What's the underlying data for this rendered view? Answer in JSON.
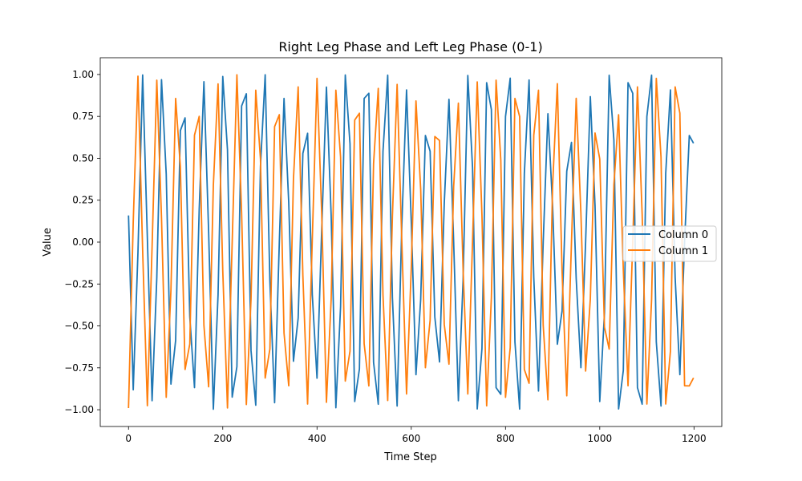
{
  "chart_data": {
    "type": "line",
    "title": "Right Leg Phase and Left Leg Phase (0-1)",
    "xlabel": "Time Step",
    "ylabel": "Value",
    "xlim": [
      -60,
      1259
    ],
    "ylim": [
      -1.1,
      1.1
    ],
    "xticks": [
      0,
      200,
      400,
      600,
      800,
      1000,
      1200
    ],
    "yticks": [
      -1.0,
      -0.75,
      -0.5,
      -0.25,
      0.0,
      0.25,
      0.5,
      0.75,
      1.0
    ],
    "xtick_labels": [
      "0",
      "200",
      "400",
      "600",
      "800",
      "1000",
      "1200"
    ],
    "ytick_labels": [
      "−1.00",
      "−0.75",
      "−0.50",
      "−0.25",
      "0.00",
      "0.25",
      "0.50",
      "0.75",
      "1.00"
    ],
    "grid": false,
    "legend_position": "center-right",
    "series": [
      {
        "name": "Column 0",
        "color": "#1f77b4",
        "x": [
          0,
          10,
          20,
          30,
          40,
          50,
          60,
          70,
          80,
          90,
          100,
          110,
          120,
          130,
          140,
          150,
          160,
          170,
          180,
          190,
          200,
          210,
          220,
          230,
          240,
          250,
          260,
          270,
          280,
          290,
          300,
          310,
          320,
          330,
          340,
          350,
          360,
          370,
          380,
          390,
          400,
          410,
          420,
          430,
          440,
          450,
          460,
          470,
          480,
          490,
          500,
          510,
          520,
          530,
          540,
          550,
          560,
          570,
          580,
          590,
          600,
          610,
          620,
          630,
          640,
          650,
          660,
          670,
          680,
          690,
          700,
          710,
          720,
          730,
          740,
          750,
          760,
          770,
          780,
          790,
          800,
          810,
          820,
          830,
          840,
          850,
          860,
          870,
          880,
          890,
          900,
          910,
          920,
          930,
          940,
          950,
          960,
          970,
          980,
          990,
          1000,
          1010,
          1020,
          1030,
          1040,
          1050,
          1060,
          1070,
          1080,
          1090,
          1100,
          1110,
          1120,
          1130,
          1140,
          1150,
          1160,
          1170,
          1180,
          1190,
          1199
        ],
        "y": [
          0.159,
          -0.881,
          -0.062,
          0.997,
          0.021,
          -0.946,
          -0.213,
          0.969,
          0.407,
          -0.847,
          -0.586,
          0.665,
          0.741,
          -0.445,
          -0.868,
          0.196,
          0.957,
          0.061,
          -0.997,
          -0.314,
          0.988,
          0.551,
          -0.925,
          -0.743,
          0.812,
          0.885,
          -0.649,
          -0.973,
          0.453,
          0.998,
          -0.234,
          -0.958,
          0.0,
          0.857,
          0.234,
          -0.711,
          -0.453,
          0.529,
          0.649,
          -0.314,
          -0.812,
          0.078,
          0.925,
          0.161,
          -0.988,
          -0.385,
          0.997,
          0.586,
          -0.951,
          -0.757,
          0.857,
          0.888,
          -0.717,
          -0.967,
          0.541,
          0.996,
          -0.332,
          -0.978,
          0.105,
          0.908,
          0.122,
          -0.791,
          -0.342,
          0.636,
          0.542,
          -0.447,
          -0.715,
          0.228,
          0.852,
          0.0,
          -0.946,
          -0.228,
          0.994,
          0.447,
          -0.995,
          -0.636,
          0.951,
          0.791,
          -0.868,
          -0.908,
          0.749,
          0.978,
          -0.595,
          -0.996,
          0.411,
          0.967,
          -0.212,
          -0.888,
          0.0,
          0.766,
          0.212,
          -0.609,
          -0.411,
          0.423,
          0.595,
          -0.217,
          -0.749,
          0.0,
          0.868,
          0.217,
          -0.951,
          -0.423,
          0.995,
          0.609,
          -0.995,
          -0.766,
          0.951,
          0.888,
          -0.868,
          -0.967,
          0.749,
          0.996,
          -0.595,
          -0.978,
          0.411,
          0.908,
          -0.212,
          -0.791,
          0.0,
          0.636,
          0.59
        ]
      },
      {
        "name": "Column 1",
        "color": "#ff7f0e",
        "x": [
          0,
          10,
          20,
          30,
          40,
          50,
          60,
          70,
          80,
          90,
          100,
          110,
          120,
          130,
          140,
          150,
          160,
          170,
          180,
          190,
          200,
          210,
          220,
          230,
          240,
          250,
          260,
          270,
          280,
          290,
          300,
          310,
          320,
          330,
          340,
          350,
          360,
          370,
          380,
          390,
          400,
          410,
          420,
          430,
          440,
          450,
          460,
          470,
          480,
          490,
          500,
          510,
          520,
          530,
          540,
          550,
          560,
          570,
          580,
          590,
          600,
          610,
          620,
          630,
          640,
          650,
          660,
          670,
          680,
          690,
          700,
          710,
          720,
          730,
          740,
          750,
          760,
          770,
          780,
          790,
          800,
          810,
          820,
          830,
          840,
          850,
          860,
          870,
          880,
          890,
          900,
          910,
          920,
          930,
          940,
          950,
          960,
          970,
          980,
          990,
          1000,
          1010,
          1020,
          1030,
          1040,
          1050,
          1060,
          1070,
          1080,
          1090,
          1100,
          1110,
          1120,
          1130,
          1140,
          1150,
          1160,
          1170,
          1180,
          1190,
          1199
        ],
        "y": [
          -0.99,
          0.121,
          0.99,
          -0.053,
          -0.976,
          -0.026,
          0.966,
          0.143,
          -0.926,
          -0.288,
          0.857,
          0.449,
          -0.76,
          -0.608,
          0.638,
          0.75,
          -0.496,
          -0.863,
          0.339,
          0.944,
          -0.172,
          -0.989,
          0.0,
          0.998,
          0.172,
          -0.969,
          -0.339,
          0.906,
          0.496,
          -0.811,
          -0.638,
          0.689,
          0.76,
          -0.542,
          -0.857,
          0.377,
          0.926,
          -0.2,
          -0.966,
          0.018,
          0.977,
          0.165,
          -0.956,
          -0.343,
          0.906,
          0.507,
          -0.829,
          -0.651,
          0.728,
          0.769,
          -0.606,
          -0.858,
          0.467,
          0.917,
          -0.316,
          -0.945,
          0.157,
          0.941,
          0.0,
          -0.906,
          -0.157,
          0.842,
          0.316,
          -0.749,
          -0.467,
          0.63,
          0.606,
          -0.49,
          -0.728,
          0.332,
          0.829,
          -0.162,
          -0.906,
          0.0,
          0.956,
          0.162,
          -0.977,
          -0.332,
          0.966,
          0.49,
          -0.926,
          -0.63,
          0.857,
          0.749,
          -0.76,
          -0.842,
          0.638,
          0.906,
          -0.496,
          -0.941,
          0.339,
          0.945,
          -0.172,
          -0.917,
          0.0,
          0.858,
          0.172,
          -0.769,
          -0.339,
          0.651,
          0.496,
          -0.507,
          -0.638,
          0.343,
          0.76,
          -0.165,
          -0.857,
          0.0,
          0.926,
          0.165,
          -0.966,
          -0.343,
          0.977,
          0.507,
          -0.966,
          -0.651,
          0.926,
          0.769,
          -0.857,
          -0.858,
          -0.81
        ]
      }
    ]
  }
}
